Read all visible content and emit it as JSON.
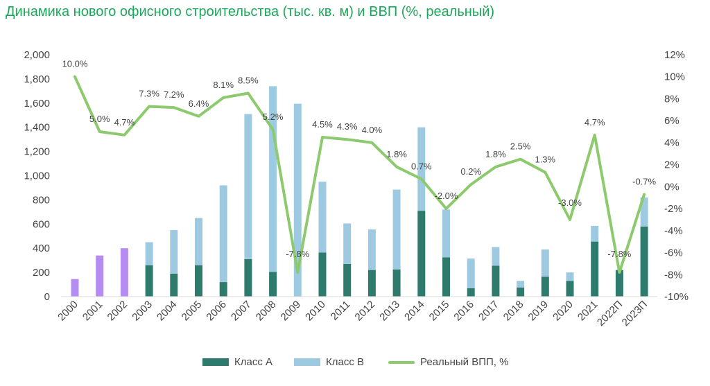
{
  "title": "Динамика нового офисного строительства (тыс. кв. м) и ВВП (%, реальный)",
  "legend": {
    "class_a": "Класс А",
    "class_b": "Класс В",
    "gdp": "Реальный ВПП, %"
  },
  "colors": {
    "class_a": "#2e7b6e",
    "class_b": "#9ecae1",
    "total_only": "#b48cf2",
    "gdp_line": "#8dc96d",
    "title": "#1aa85a"
  },
  "chart_data": {
    "type": "bar",
    "title": "Динамика нового офисного строительства (тыс. кв. м) и ВВП (%, реальный)",
    "categories": [
      "2000",
      "2001",
      "2002",
      "2003",
      "2004",
      "2005",
      "2006",
      "2007",
      "2008",
      "2009",
      "2010",
      "2011",
      "2012",
      "2013",
      "2014",
      "2015",
      "2016",
      "2017",
      "2018",
      "2019",
      "2020",
      "2021",
      "2022П",
      "2023П"
    ],
    "series": [
      {
        "name": "Класс А",
        "type": "bar",
        "stacked": true,
        "values": [
          null,
          null,
          null,
          260,
          190,
          260,
          120,
          310,
          205,
          0,
          365,
          270,
          220,
          225,
          710,
          325,
          70,
          255,
          75,
          165,
          130,
          455,
          220,
          580
        ]
      },
      {
        "name": "Класс В",
        "type": "bar",
        "stacked": true,
        "values": [
          null,
          null,
          null,
          190,
          360,
          390,
          800,
          1200,
          1535,
          1595,
          585,
          335,
          335,
          660,
          690,
          395,
          245,
          155,
          55,
          225,
          70,
          130,
          0,
          240
        ]
      },
      {
        "name": "",
        "type": "bar",
        "note_color": "total_only",
        "values": [
          145,
          340,
          400,
          null,
          null,
          null,
          null,
          null,
          null,
          null,
          null,
          null,
          null,
          null,
          null,
          null,
          null,
          null,
          null,
          null,
          null,
          null,
          null,
          null
        ]
      },
      {
        "name": "Реальный ВПП, %",
        "type": "line",
        "axis": "right",
        "values": [
          10.0,
          5.0,
          4.7,
          7.3,
          7.2,
          6.4,
          8.1,
          8.5,
          5.2,
          -7.8,
          4.5,
          4.3,
          4.0,
          1.8,
          0.7,
          -2.0,
          0.2,
          1.8,
          2.5,
          1.3,
          -3.0,
          4.7,
          -7.8,
          -0.7
        ]
      }
    ],
    "data_labels": [
      "10.0%",
      "5.0%",
      "4.7%",
      "7.3%",
      "7.2%",
      "6.4%",
      "8.1%",
      "8.5%",
      "5.2%",
      "-7.8%",
      "4.5%",
      "4.3%",
      "4.0%",
      "1.8%",
      "0.7%",
      "-2.0%",
      "0.2%",
      "1.8%",
      "2.5%",
      "1.3%",
      "-3.0%",
      "4.7%",
      "-7.8%",
      "-0.7%"
    ],
    "y_left": {
      "min": 0,
      "max": 2000,
      "step": 200,
      "ticks": [
        "0",
        "200",
        "400",
        "600",
        "800",
        "1,000",
        "1,200",
        "1,400",
        "1,600",
        "1,800",
        "2,000"
      ]
    },
    "y_right": {
      "min": -10,
      "max": 12,
      "step": 2,
      "ticks": [
        "-10%",
        "-8%",
        "-6%",
        "-4%",
        "-2%",
        "0%",
        "2%",
        "4%",
        "6%",
        "8%",
        "10%",
        "12%"
      ]
    },
    "grid": false,
    "legend_position": "bottom"
  }
}
